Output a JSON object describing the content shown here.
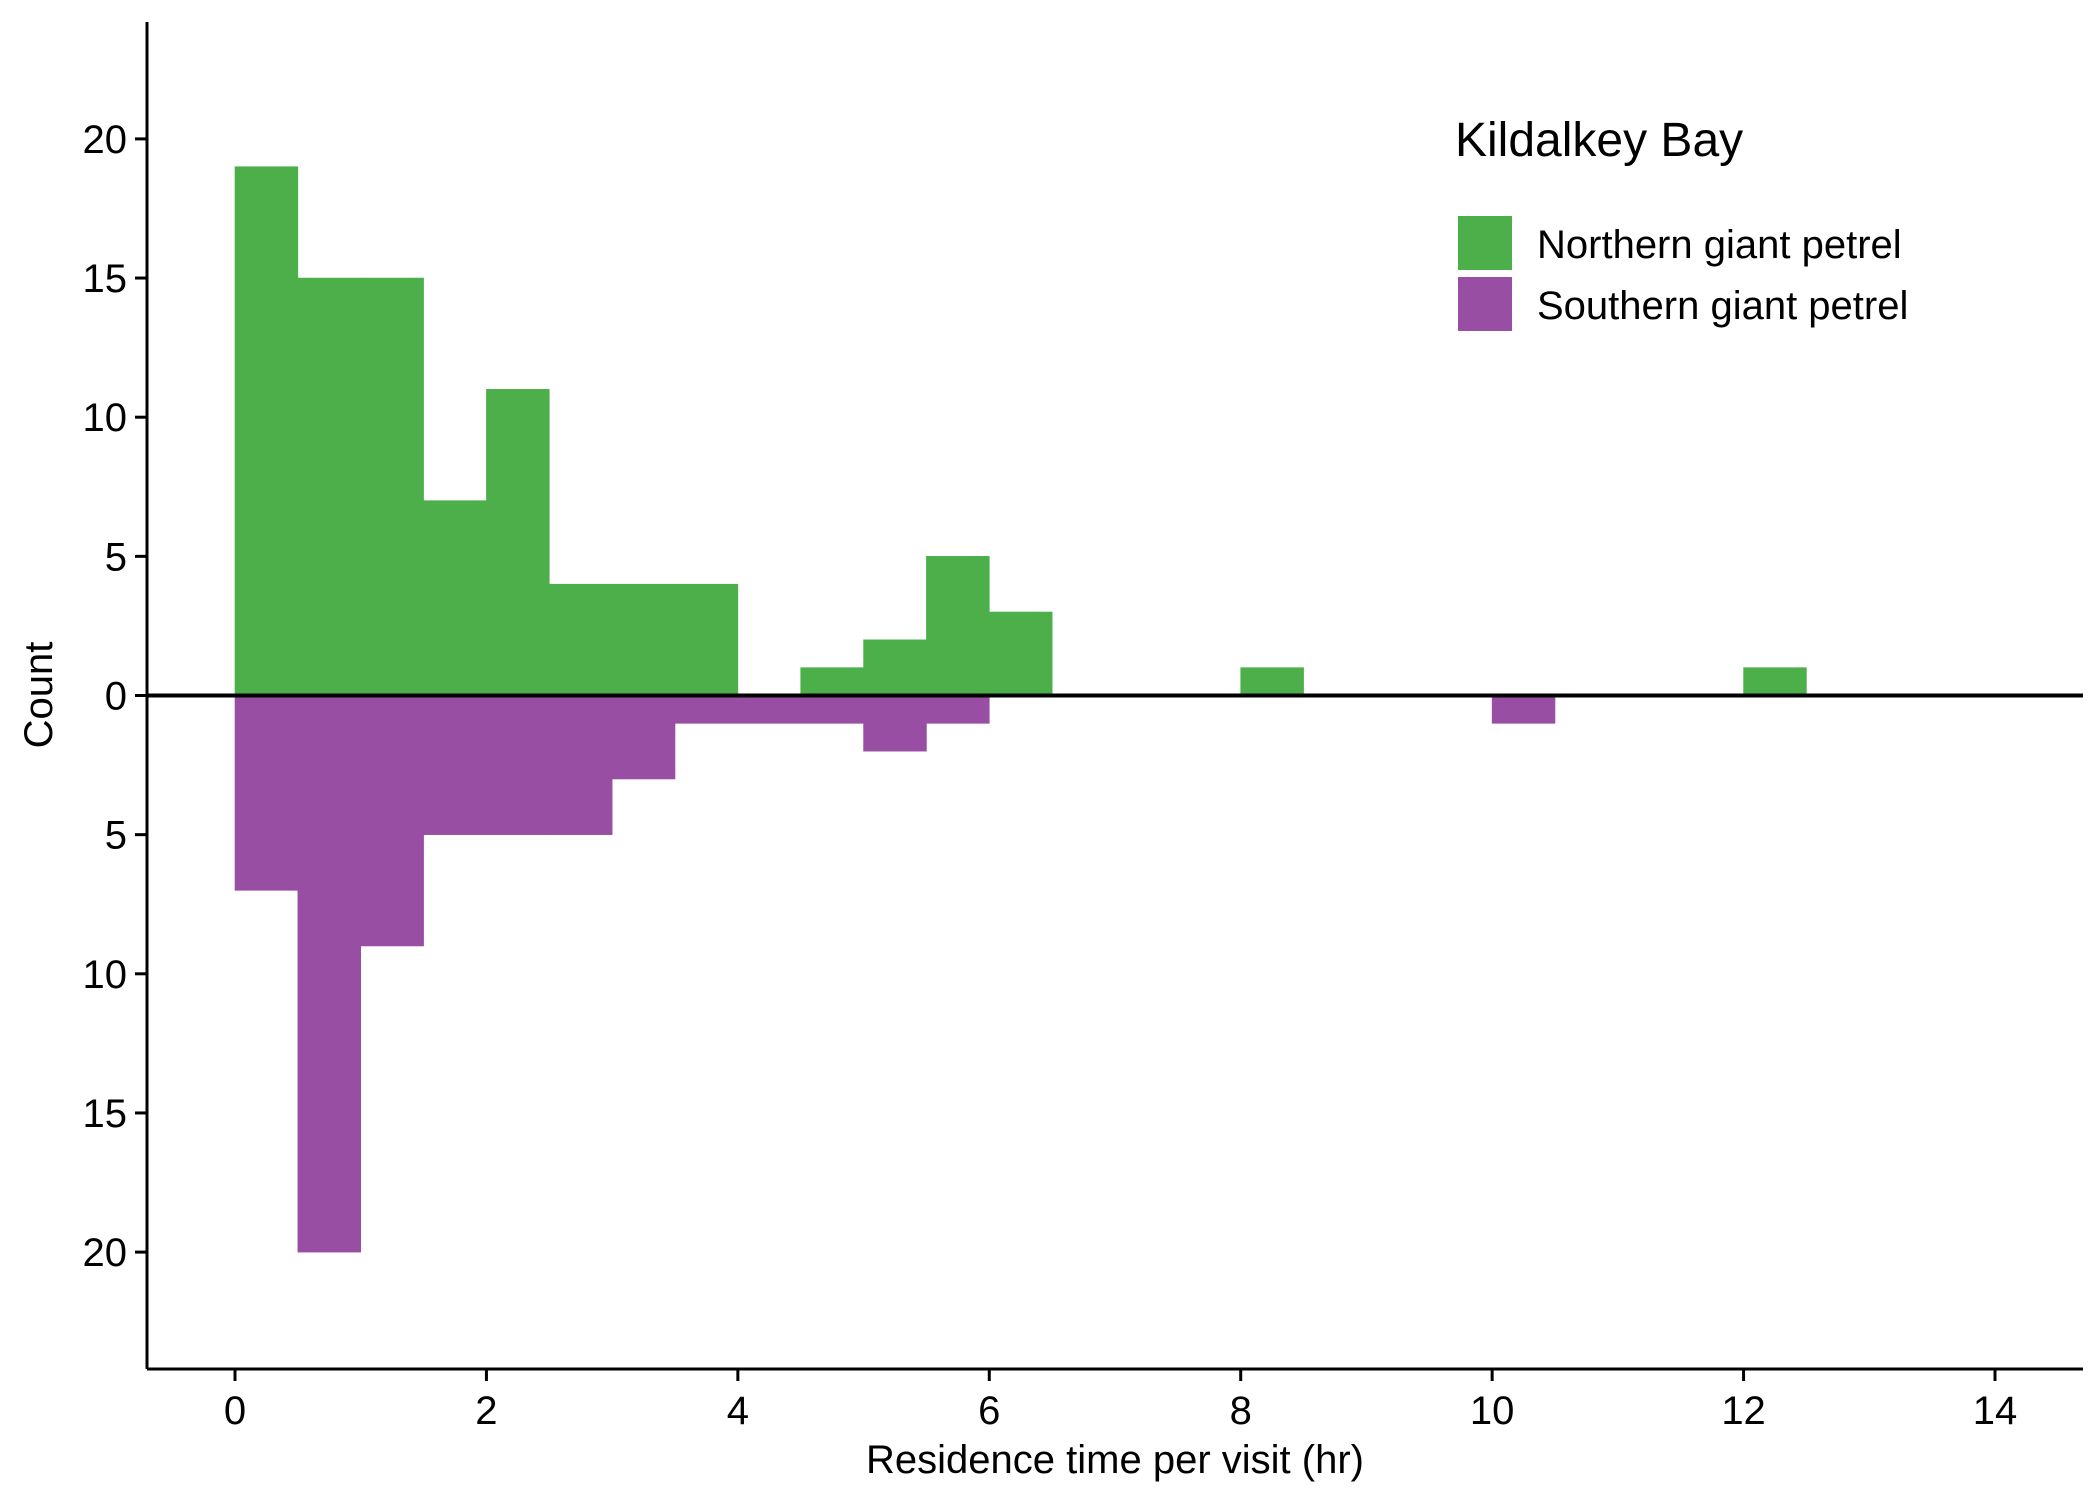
{
  "chart_data": {
    "type": "bar",
    "subtype": "mirrored histogram",
    "xlabel": "Residence time per visit (hr)",
    "ylabel": "Count",
    "xlim": [
      -0.7,
      14.7
    ],
    "ylim_display": [
      -24.2,
      24.2
    ],
    "bin_width": 0.5,
    "x_ticks": [
      "0",
      "2",
      "4",
      "6",
      "8",
      "10",
      "12",
      "14"
    ],
    "x_tick_values": [
      0,
      2,
      4,
      6,
      8,
      10,
      12,
      14
    ],
    "y_ticks": [
      "20",
      "15",
      "10",
      "5",
      "0",
      "5",
      "10",
      "15",
      "20"
    ],
    "y_tick_values": [
      20,
      15,
      10,
      5,
      0,
      -5,
      -10,
      -15,
      -20
    ],
    "legend": {
      "title": "Kildalkey Bay",
      "position": "top-right"
    },
    "grid": false,
    "series": [
      {
        "name": "Northern giant petrel",
        "direction": "up",
        "color": "#4daf4a",
        "bins": [
          {
            "x0": 0.0,
            "x1": 0.5,
            "count": 19
          },
          {
            "x0": 0.5,
            "x1": 1.0,
            "count": 15
          },
          {
            "x0": 1.0,
            "x1": 1.5,
            "count": 15
          },
          {
            "x0": 1.5,
            "x1": 2.0,
            "count": 7
          },
          {
            "x0": 2.0,
            "x1": 2.5,
            "count": 11
          },
          {
            "x0": 2.5,
            "x1": 3.0,
            "count": 4
          },
          {
            "x0": 3.0,
            "x1": 3.5,
            "count": 4
          },
          {
            "x0": 3.5,
            "x1": 4.0,
            "count": 4
          },
          {
            "x0": 4.5,
            "x1": 5.0,
            "count": 1
          },
          {
            "x0": 5.0,
            "x1": 5.5,
            "count": 2
          },
          {
            "x0": 5.5,
            "x1": 6.0,
            "count": 5
          },
          {
            "x0": 6.0,
            "x1": 6.5,
            "count": 3
          },
          {
            "x0": 8.0,
            "x1": 8.5,
            "count": 1
          },
          {
            "x0": 12.0,
            "x1": 12.5,
            "count": 1
          }
        ]
      },
      {
        "name": "Southern giant petrel",
        "direction": "down",
        "color": "#984ea3",
        "bins": [
          {
            "x0": 0.0,
            "x1": 0.5,
            "count": 7
          },
          {
            "x0": 0.5,
            "x1": 1.0,
            "count": 20
          },
          {
            "x0": 1.0,
            "x1": 1.5,
            "count": 9
          },
          {
            "x0": 1.5,
            "x1": 2.0,
            "count": 5
          },
          {
            "x0": 2.0,
            "x1": 2.5,
            "count": 5
          },
          {
            "x0": 2.5,
            "x1": 3.0,
            "count": 5
          },
          {
            "x0": 3.0,
            "x1": 3.5,
            "count": 3
          },
          {
            "x0": 3.5,
            "x1": 4.0,
            "count": 1
          },
          {
            "x0": 4.0,
            "x1": 4.5,
            "count": 1
          },
          {
            "x0": 4.5,
            "x1": 5.0,
            "count": 1
          },
          {
            "x0": 5.0,
            "x1": 5.5,
            "count": 2
          },
          {
            "x0": 5.5,
            "x1": 6.0,
            "count": 1
          },
          {
            "x0": 10.0,
            "x1": 10.5,
            "count": 1
          }
        ]
      }
    ]
  }
}
